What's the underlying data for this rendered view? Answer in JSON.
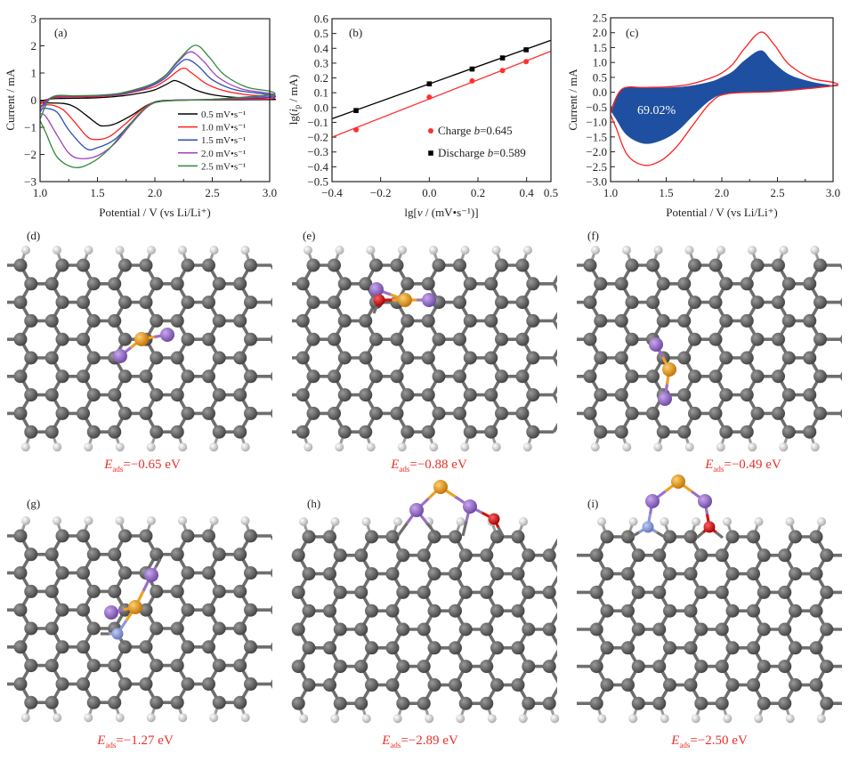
{
  "chart_data": [
    {
      "type": "line",
      "panel_label": "(a)",
      "xlabel": "Potential / V (vs Li/Li⁺)",
      "ylabel": "Current / mA",
      "xlim": [
        1.0,
        3.0
      ],
      "ylim": [
        -3,
        3
      ],
      "xticks": [
        "1.0",
        "1.5",
        "2.0",
        "2.5",
        "3.0"
      ],
      "yticks": [
        "−3",
        "−2",
        "−1",
        "0",
        "1",
        "2",
        "3"
      ],
      "grid": false,
      "legend_position": "bottom-right",
      "series": [
        {
          "name": "0.5 mV•s⁻¹",
          "color": "#000000",
          "anodic": [
            [
              1.0,
              -0.05
            ],
            [
              1.1,
              0.05
            ],
            [
              1.3,
              0.07
            ],
            [
              1.5,
              0.09
            ],
            [
              1.7,
              0.15
            ],
            [
              1.9,
              0.28
            ],
            [
              2.0,
              0.38
            ],
            [
              2.1,
              0.58
            ],
            [
              2.17,
              0.72
            ],
            [
              2.25,
              0.6
            ],
            [
              2.35,
              0.38
            ],
            [
              2.5,
              0.2
            ],
            [
              2.7,
              0.1
            ],
            [
              3.0,
              0.04
            ]
          ],
          "cathodic": [
            [
              1.0,
              -0.1
            ],
            [
              1.2,
              -0.12
            ],
            [
              1.3,
              -0.25
            ],
            [
              1.4,
              -0.55
            ],
            [
              1.5,
              -0.88
            ],
            [
              1.55,
              -0.95
            ],
            [
              1.65,
              -0.88
            ],
            [
              1.8,
              -0.55
            ],
            [
              1.95,
              -0.15
            ],
            [
              2.1,
              -0.01
            ],
            [
              2.5,
              0.01
            ],
            [
              3.0,
              0.02
            ]
          ]
        },
        {
          "name": "1.0 mV•s⁻¹",
          "color": "#ff2020",
          "anodic": [
            [
              1.0,
              -0.15
            ],
            [
              1.1,
              0.08
            ],
            [
              1.3,
              0.11
            ],
            [
              1.5,
              0.13
            ],
            [
              1.7,
              0.2
            ],
            [
              1.9,
              0.38
            ],
            [
              2.0,
              0.5
            ],
            [
              2.1,
              0.75
            ],
            [
              2.24,
              1.17
            ],
            [
              2.32,
              1.0
            ],
            [
              2.45,
              0.6
            ],
            [
              2.6,
              0.35
            ],
            [
              2.8,
              0.2
            ],
            [
              3.0,
              0.14
            ]
          ],
          "cathodic": [
            [
              1.0,
              -0.2
            ],
            [
              1.1,
              -0.18
            ],
            [
              1.2,
              -0.35
            ],
            [
              1.3,
              -0.8
            ],
            [
              1.4,
              -1.3
            ],
            [
              1.47,
              -1.45
            ],
            [
              1.6,
              -1.35
            ],
            [
              1.75,
              -0.85
            ],
            [
              1.9,
              -0.3
            ],
            [
              2.05,
              -0.05
            ],
            [
              2.5,
              0.02
            ],
            [
              3.0,
              0.05
            ]
          ]
        },
        {
          "name": "1.5 mV•s⁻¹",
          "color": "#2a4fb5",
          "anodic": [
            [
              1.0,
              -0.3
            ],
            [
              1.1,
              0.1
            ],
            [
              1.3,
              0.14
            ],
            [
              1.5,
              0.16
            ],
            [
              1.7,
              0.22
            ],
            [
              1.9,
              0.42
            ],
            [
              2.0,
              0.58
            ],
            [
              2.1,
              0.85
            ],
            [
              2.2,
              1.3
            ],
            [
              2.28,
              1.5
            ],
            [
              2.38,
              1.25
            ],
            [
              2.5,
              0.75
            ],
            [
              2.7,
              0.38
            ],
            [
              3.0,
              0.2
            ]
          ],
          "cathodic": [
            [
              1.0,
              -0.35
            ],
            [
              1.05,
              -0.3
            ],
            [
              1.15,
              -0.45
            ],
            [
              1.25,
              -1.1
            ],
            [
              1.4,
              -1.78
            ],
            [
              1.5,
              -1.75
            ],
            [
              1.65,
              -1.45
            ],
            [
              1.8,
              -0.8
            ],
            [
              1.95,
              -0.2
            ],
            [
              2.1,
              -0.02
            ],
            [
              2.5,
              0.03
            ],
            [
              3.0,
              0.1
            ]
          ]
        },
        {
          "name": "2.0 mV•s⁻¹",
          "color": "#a040c0",
          "anodic": [
            [
              1.0,
              -0.45
            ],
            [
              1.1,
              0.1
            ],
            [
              1.3,
              0.15
            ],
            [
              1.5,
              0.17
            ],
            [
              1.7,
              0.24
            ],
            [
              1.9,
              0.45
            ],
            [
              2.0,
              0.62
            ],
            [
              2.1,
              0.92
            ],
            [
              2.2,
              1.4
            ],
            [
              2.31,
              1.78
            ],
            [
              2.42,
              1.45
            ],
            [
              2.55,
              0.85
            ],
            [
              2.75,
              0.42
            ],
            [
              3.0,
              0.25
            ]
          ],
          "cathodic": [
            [
              1.0,
              -0.5
            ],
            [
              1.05,
              -0.6
            ],
            [
              1.15,
              -1.3
            ],
            [
              1.25,
              -1.95
            ],
            [
              1.35,
              -2.15
            ],
            [
              1.5,
              -2.05
            ],
            [
              1.65,
              -1.6
            ],
            [
              1.8,
              -0.85
            ],
            [
              1.95,
              -0.2
            ],
            [
              2.1,
              -0.02
            ],
            [
              2.5,
              0.03
            ],
            [
              3.0,
              0.15
            ]
          ]
        },
        {
          "name": "2.5 mV•s⁻¹",
          "color": "#2e8a3a",
          "anodic": [
            [
              1.0,
              -0.7
            ],
            [
              1.1,
              0.1
            ],
            [
              1.3,
              0.16
            ],
            [
              1.5,
              0.18
            ],
            [
              1.7,
              0.26
            ],
            [
              1.9,
              0.48
            ],
            [
              2.0,
              0.65
            ],
            [
              2.1,
              0.95
            ],
            [
              2.2,
              1.45
            ],
            [
              2.35,
              2.02
            ],
            [
              2.47,
              1.6
            ],
            [
              2.6,
              0.95
            ],
            [
              2.8,
              0.48
            ],
            [
              3.0,
              0.33
            ]
          ],
          "cathodic": [
            [
              1.0,
              -0.75
            ],
            [
              1.05,
              -1.2
            ],
            [
              1.15,
              -2.1
            ],
            [
              1.3,
              -2.48
            ],
            [
              1.45,
              -2.3
            ],
            [
              1.6,
              -1.8
            ],
            [
              1.75,
              -1.05
            ],
            [
              1.9,
              -0.35
            ],
            [
              2.05,
              -0.05
            ],
            [
              2.5,
              0.03
            ],
            [
              3.0,
              0.2
            ]
          ]
        }
      ]
    },
    {
      "type": "scatter",
      "panel_label": "(b)",
      "xlabel": {
        "pre": "lg[",
        "var": "v",
        "post": " / (mV•s⁻¹)]"
      },
      "ylabel": {
        "pre": "lg(",
        "var": "i",
        "sub": "p",
        "post": " / mA)"
      },
      "xlim": [
        -0.4,
        0.5
      ],
      "ylim": [
        -0.5,
        0.6
      ],
      "xticks": [
        "−0.4",
        "−0.2",
        "0.0",
        "0.2",
        "0.4",
        "0.5"
      ],
      "yticks": [
        "−0.5",
        "−0.4",
        "−0.3",
        "−0.2",
        "−0.1",
        "0.0",
        "0.1",
        "0.2",
        "0.3",
        "0.4",
        "0.5",
        "0.6"
      ],
      "grid": false,
      "legend_position": "bottom-right",
      "series": [
        {
          "name": "Charge",
          "b_symbol": "b",
          "b_text": "=0.645",
          "marker": "circle",
          "color": "#ff3030",
          "x": [
            -0.301,
            0.0,
            0.176,
            0.301,
            0.398
          ],
          "y": [
            -0.15,
            0.07,
            0.18,
            0.25,
            0.31
          ],
          "fit": {
            "slope": 0.645,
            "intercept": 0.058
          }
        },
        {
          "name": "Discharge",
          "b_symbol": "b",
          "b_text": "=0.589",
          "marker": "square",
          "color": "#000000",
          "x": [
            -0.301,
            0.0,
            0.176,
            0.301,
            0.398
          ],
          "y": [
            -0.02,
            0.16,
            0.26,
            0.335,
            0.39
          ],
          "fit": {
            "slope": 0.589,
            "intercept": 0.16
          }
        }
      ]
    },
    {
      "type": "area",
      "panel_label": "(c)",
      "xlabel": "Potential / V (vs Li/Li⁺)",
      "ylabel": "Current / mA",
      "xlim": [
        1.0,
        3.0
      ],
      "ylim": [
        -3.0,
        2.5
      ],
      "xticks": [
        "1.0",
        "1.5",
        "2.0",
        "2.5",
        "3.0"
      ],
      "yticks": [
        "−3.0",
        "−2.5",
        "−2.0",
        "−1.5",
        "−1.0",
        "−0.5",
        "0.0",
        "0.5",
        "1.0",
        "1.5",
        "2.0",
        "2.5"
      ],
      "grid": false,
      "annotation": "69.02%",
      "total_curve": {
        "color": "#ff2020",
        "anodic": [
          [
            1.0,
            -0.7
          ],
          [
            1.1,
            0.1
          ],
          [
            1.3,
            0.16
          ],
          [
            1.5,
            0.18
          ],
          [
            1.7,
            0.26
          ],
          [
            1.9,
            0.48
          ],
          [
            2.0,
            0.65
          ],
          [
            2.1,
            0.95
          ],
          [
            2.2,
            1.45
          ],
          [
            2.35,
            2.02
          ],
          [
            2.47,
            1.6
          ],
          [
            2.6,
            0.95
          ],
          [
            2.8,
            0.48
          ],
          [
            3.0,
            0.33
          ]
        ],
        "cathodic": [
          [
            1.0,
            -0.75
          ],
          [
            1.05,
            -1.2
          ],
          [
            1.15,
            -2.1
          ],
          [
            1.3,
            -2.45
          ],
          [
            1.45,
            -2.3
          ],
          [
            1.6,
            -1.8
          ],
          [
            1.75,
            -1.05
          ],
          [
            1.9,
            -0.35
          ],
          [
            2.05,
            -0.05
          ],
          [
            2.5,
            0.03
          ],
          [
            3.0,
            0.22
          ]
        ]
      },
      "capacitive_region": {
        "color": "#1f4fa0",
        "upper": [
          [
            1.0,
            -0.6
          ],
          [
            1.1,
            0.1
          ],
          [
            1.3,
            0.14
          ],
          [
            1.5,
            0.15
          ],
          [
            1.7,
            0.2
          ],
          [
            1.9,
            0.35
          ],
          [
            2.0,
            0.5
          ],
          [
            2.1,
            0.7
          ],
          [
            2.2,
            1.05
          ],
          [
            2.35,
            1.4
          ],
          [
            2.45,
            1.05
          ],
          [
            2.6,
            0.6
          ],
          [
            2.8,
            0.35
          ],
          [
            3.0,
            0.22
          ]
        ],
        "lower": [
          [
            1.0,
            -0.6
          ],
          [
            1.05,
            -0.9
          ],
          [
            1.15,
            -1.45
          ],
          [
            1.3,
            -1.72
          ],
          [
            1.45,
            -1.62
          ],
          [
            1.6,
            -1.3
          ],
          [
            1.75,
            -0.75
          ],
          [
            1.9,
            -0.25
          ],
          [
            2.05,
            -0.05
          ],
          [
            2.5,
            0.03
          ],
          [
            3.0,
            0.2
          ]
        ]
      }
    }
  ],
  "structures": [
    {
      "label": "(d)",
      "energy_symbol": "E",
      "energy_subscript": "ads",
      "energy_value": "=−0.65 eV"
    },
    {
      "label": "(e)",
      "energy_symbol": "E",
      "energy_subscript": "ads",
      "energy_value": "=−0.88 eV"
    },
    {
      "label": "(f)",
      "energy_symbol": "E",
      "energy_subscript": "ads",
      "energy_value": "=−0.49 eV"
    },
    {
      "label": "(g)",
      "energy_symbol": "E",
      "energy_subscript": "ads",
      "energy_value": "=−1.27 eV"
    },
    {
      "label": "(h)",
      "energy_symbol": "E",
      "energy_subscript": "ads",
      "energy_value": "=−2.89 eV"
    },
    {
      "label": "(i)",
      "energy_symbol": "E",
      "energy_subscript": "ads",
      "energy_value": "=−2.50 eV"
    }
  ],
  "atom_colors": {
    "carbon": "#5a5a5a",
    "hydrogen": "#dcdcdc",
    "sulfur": "#f0a020",
    "lithium": "#9b6fc8",
    "oxygen": "#d41010",
    "nitrogen": "#8a9ad8"
  },
  "energy_label_color": "#e8302a"
}
